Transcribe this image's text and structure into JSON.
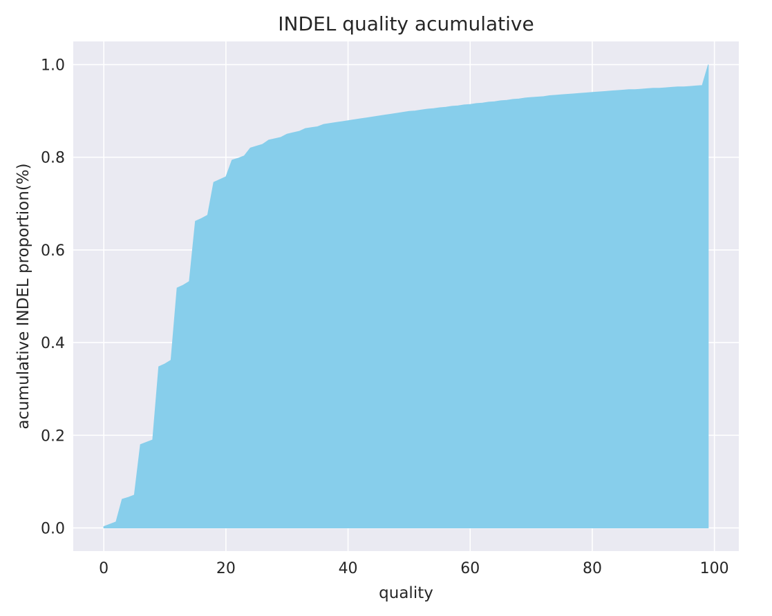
{
  "chart_data": {
    "type": "area",
    "title": "INDEL quality acumulative",
    "xlabel": "quality",
    "ylabel": "acumulative INDEL proportion(%)",
    "xlim": [
      -5,
      104
    ],
    "ylim": [
      -0.05,
      1.05
    ],
    "xticks": [
      0,
      20,
      40,
      60,
      80,
      100
    ],
    "yticks": [
      0.0,
      0.2,
      0.4,
      0.6,
      0.8,
      1.0
    ],
    "xtick_labels": [
      "0",
      "20",
      "40",
      "60",
      "80",
      "100"
    ],
    "ytick_labels": [
      "0.0",
      "0.2",
      "0.4",
      "0.6",
      "0.8",
      "1.0"
    ],
    "grid": true,
    "color": "#87ceeb",
    "background": "#eaeaf2",
    "x": [
      0,
      1,
      2,
      3,
      4,
      5,
      6,
      7,
      8,
      9,
      10,
      11,
      12,
      13,
      14,
      15,
      16,
      17,
      18,
      19,
      20,
      21,
      22,
      23,
      24,
      25,
      26,
      27,
      28,
      29,
      30,
      31,
      32,
      33,
      34,
      35,
      36,
      37,
      38,
      39,
      40,
      41,
      42,
      43,
      44,
      45,
      46,
      47,
      48,
      49,
      50,
      51,
      52,
      53,
      54,
      55,
      56,
      57,
      58,
      59,
      60,
      61,
      62,
      63,
      64,
      65,
      66,
      67,
      68,
      69,
      70,
      71,
      72,
      73,
      74,
      75,
      76,
      77,
      78,
      79,
      80,
      81,
      82,
      83,
      84,
      85,
      86,
      87,
      88,
      89,
      90,
      91,
      92,
      93,
      94,
      95,
      96,
      97,
      98,
      99
    ],
    "y": [
      0.003,
      0.008,
      0.013,
      0.062,
      0.066,
      0.071,
      0.18,
      0.185,
      0.19,
      0.348,
      0.354,
      0.362,
      0.518,
      0.524,
      0.532,
      0.662,
      0.668,
      0.675,
      0.746,
      0.752,
      0.758,
      0.794,
      0.798,
      0.803,
      0.82,
      0.824,
      0.828,
      0.837,
      0.84,
      0.843,
      0.85,
      0.853,
      0.856,
      0.862,
      0.864,
      0.866,
      0.871,
      0.873,
      0.875,
      0.877,
      0.879,
      0.881,
      0.883,
      0.885,
      0.887,
      0.889,
      0.891,
      0.893,
      0.895,
      0.897,
      0.899,
      0.9,
      0.902,
      0.904,
      0.905,
      0.907,
      0.908,
      0.91,
      0.911,
      0.913,
      0.914,
      0.916,
      0.917,
      0.919,
      0.92,
      0.922,
      0.923,
      0.925,
      0.926,
      0.928,
      0.929,
      0.93,
      0.931,
      0.933,
      0.934,
      0.935,
      0.936,
      0.937,
      0.938,
      0.939,
      0.94,
      0.941,
      0.942,
      0.943,
      0.944,
      0.945,
      0.946,
      0.946,
      0.947,
      0.948,
      0.949,
      0.949,
      0.95,
      0.951,
      0.952,
      0.952,
      0.953,
      0.954,
      0.955,
      1.0
    ]
  }
}
